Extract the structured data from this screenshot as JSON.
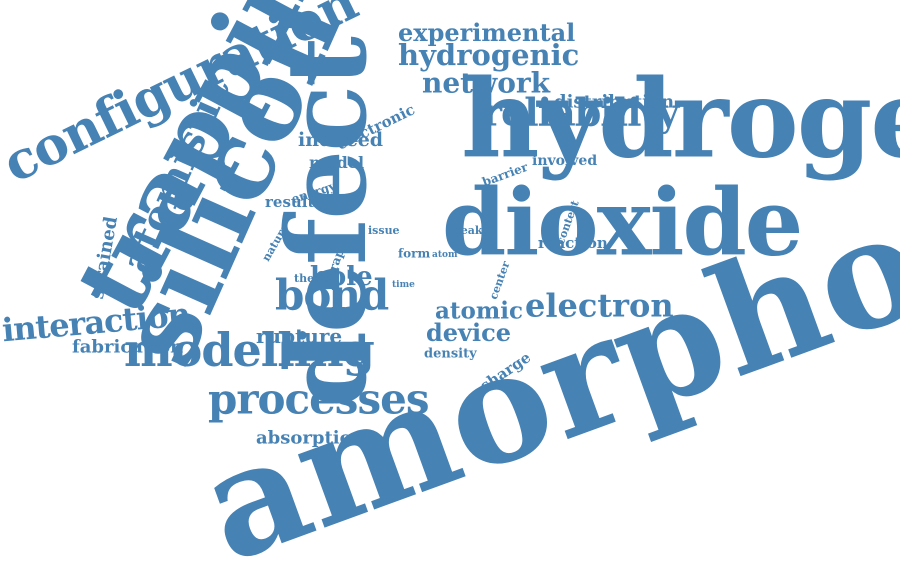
{
  "word_color": "#4682b4",
  "words": [
    {
      "text": "amorphous",
      "weight": 1.0
    },
    {
      "text": "hydrogen",
      "weight": 0.78
    },
    {
      "text": "defect",
      "weight": 0.75
    },
    {
      "text": "silicon",
      "weight": 0.72
    },
    {
      "text": "dioxide",
      "weight": 0.68
    },
    {
      "text": "trapping",
      "weight": 0.62
    },
    {
      "text": "configuration",
      "weight": 0.4
    },
    {
      "text": "modelling",
      "weight": 0.38
    },
    {
      "text": "atomistic",
      "weight": 0.36
    },
    {
      "text": "processes",
      "weight": 0.35
    },
    {
      "text": "reliability",
      "weight": 0.33
    },
    {
      "text": "bond",
      "weight": 0.32
    },
    {
      "text": "electron",
      "weight": 0.3
    },
    {
      "text": "interaction",
      "weight": 0.29
    },
    {
      "text": "hydrogenic",
      "weight": 0.27
    },
    {
      "text": "network",
      "weight": 0.26
    },
    {
      "text": "atomic",
      "weight": 0.24
    },
    {
      "text": "device",
      "weight": 0.23
    },
    {
      "text": "hole",
      "weight": 0.22
    },
    {
      "text": "experimental",
      "weight": 0.22
    },
    {
      "text": "rupture",
      "weight": 0.2
    },
    {
      "text": "absorption",
      "weight": 0.19
    },
    {
      "text": "induced",
      "weight": 0.18
    },
    {
      "text": "fabrication",
      "weight": 0.17
    },
    {
      "text": "strained",
      "weight": 0.17
    },
    {
      "text": "distribution",
      "weight": 0.16
    },
    {
      "text": "electronic",
      "weight": 0.14
    },
    {
      "text": "model",
      "weight": 0.14
    },
    {
      "text": "charge",
      "weight": 0.13
    },
    {
      "text": "reaction",
      "weight": 0.13
    },
    {
      "text": "involved",
      "weight": 0.12
    },
    {
      "text": "result",
      "weight": 0.12
    },
    {
      "text": "energy",
      "weight": 0.11
    },
    {
      "text": "barrier",
      "weight": 0.11
    },
    {
      "text": "density",
      "weight": 0.11
    },
    {
      "text": "form",
      "weight": 0.1
    },
    {
      "text": "context",
      "weight": 0.09
    },
    {
      "text": "trap",
      "weight": 0.09
    },
    {
      "text": "thesis",
      "weight": 0.09
    },
    {
      "text": "center",
      "weight": 0.08
    },
    {
      "text": "issue",
      "weight": 0.08
    },
    {
      "text": "peak",
      "weight": 0.08
    },
    {
      "text": "nature",
      "weight": 0.08
    },
    {
      "text": "atom",
      "weight": 0.07
    },
    {
      "text": "time",
      "weight": 0.06
    }
  ]
}
